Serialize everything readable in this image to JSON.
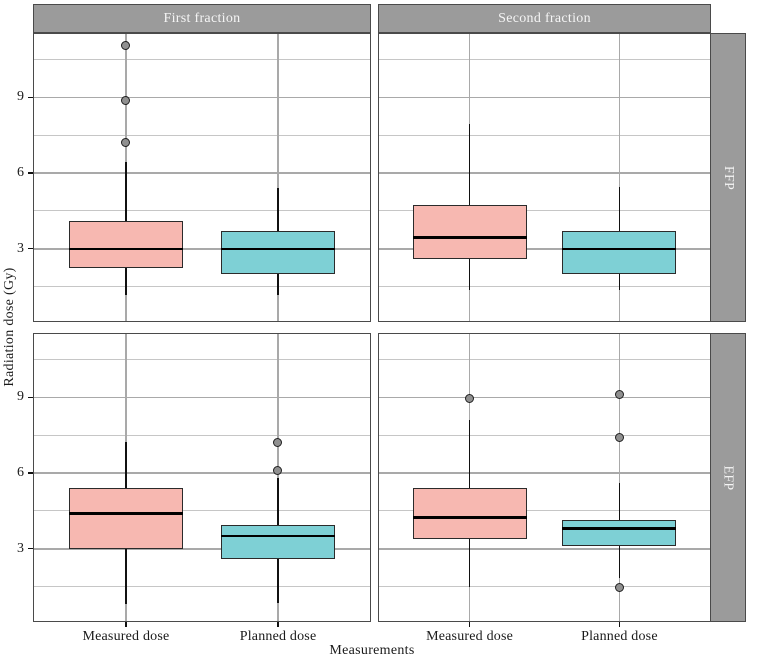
{
  "figure_title": "",
  "axes": {
    "y_title": "Radiation dose (Gy)",
    "x_title": "Measurements"
  },
  "colors": {
    "strip_bg": "#9b9b9b",
    "strip_text": "#f5f5f5",
    "panel_border": "#4a4a4a",
    "grid_major": "#a9a9a9",
    "grid_minor": "#c6c6c6",
    "measured_fill": "#f7b8b1",
    "planned_fill": "#7ed0d5",
    "box_border": "#2b2b2b",
    "median_line": "#000000",
    "outlier_fill": "#909090",
    "outlier_stroke": "#1f1f1f"
  },
  "chart_data": {
    "type": "boxplot",
    "facet_cols": [
      "First fraction",
      "Second fraction"
    ],
    "facet_rows": [
      "FFP",
      "EFP"
    ],
    "categories": [
      "Measured dose",
      "Planned dose"
    ],
    "xlabel": "Measurements",
    "ylabel": "Radiation dose (Gy)",
    "ylim": [
      0.1,
      11.55
    ],
    "yticks": [
      3,
      6,
      9
    ],
    "yminor": [
      1.5,
      4.5,
      7.5,
      10.5
    ],
    "grid": true,
    "panels": [
      {
        "row": "FFP",
        "col": "First fraction",
        "boxes": [
          {
            "category": "Measured dose",
            "series": "measured",
            "whisker_low": 1.15,
            "q1": 2.25,
            "median": 3.0,
            "q3": 4.1,
            "whisker_high": 6.45,
            "outliers": [
              7.2,
              8.85,
              11.05
            ]
          },
          {
            "category": "Planned dose",
            "series": "planned",
            "whisker_low": 1.15,
            "q1": 2.0,
            "median": 3.0,
            "q3": 3.7,
            "whisker_high": 5.4,
            "outliers": []
          }
        ]
      },
      {
        "row": "FFP",
        "col": "Second fraction",
        "boxes": [
          {
            "category": "Measured dose",
            "series": "measured",
            "whisker_low": 1.35,
            "q1": 2.6,
            "median": 3.45,
            "q3": 4.75,
            "whisker_high": 7.95,
            "outliers": []
          },
          {
            "category": "Planned dose",
            "series": "planned",
            "whisker_low": 1.35,
            "q1": 2.0,
            "median": 3.0,
            "q3": 3.7,
            "whisker_high": 5.45,
            "outliers": []
          }
        ]
      },
      {
        "row": "EFP",
        "col": "First fraction",
        "boxes": [
          {
            "category": "Measured dose",
            "series": "measured",
            "whisker_low": 0.8,
            "q1": 3.0,
            "median": 4.4,
            "q3": 5.4,
            "whisker_high": 7.25,
            "outliers": []
          },
          {
            "category": "Planned dose",
            "series": "planned",
            "whisker_low": 0.85,
            "q1": 2.6,
            "median": 3.5,
            "q3": 3.95,
            "whisker_high": 5.8,
            "outliers": [
              6.1,
              7.2
            ]
          }
        ]
      },
      {
        "row": "EFP",
        "col": "Second fraction",
        "boxes": [
          {
            "category": "Measured dose",
            "series": "measured",
            "whisker_low": 1.5,
            "q1": 3.4,
            "median": 4.25,
            "q3": 5.4,
            "whisker_high": 8.1,
            "outliers": [
              8.95
            ]
          },
          {
            "category": "Planned dose",
            "series": "planned",
            "whisker_low": 1.85,
            "q1": 3.1,
            "median": 3.8,
            "q3": 4.15,
            "whisker_high": 5.6,
            "outliers": [
              1.45,
              7.4,
              9.1
            ]
          }
        ]
      }
    ]
  }
}
